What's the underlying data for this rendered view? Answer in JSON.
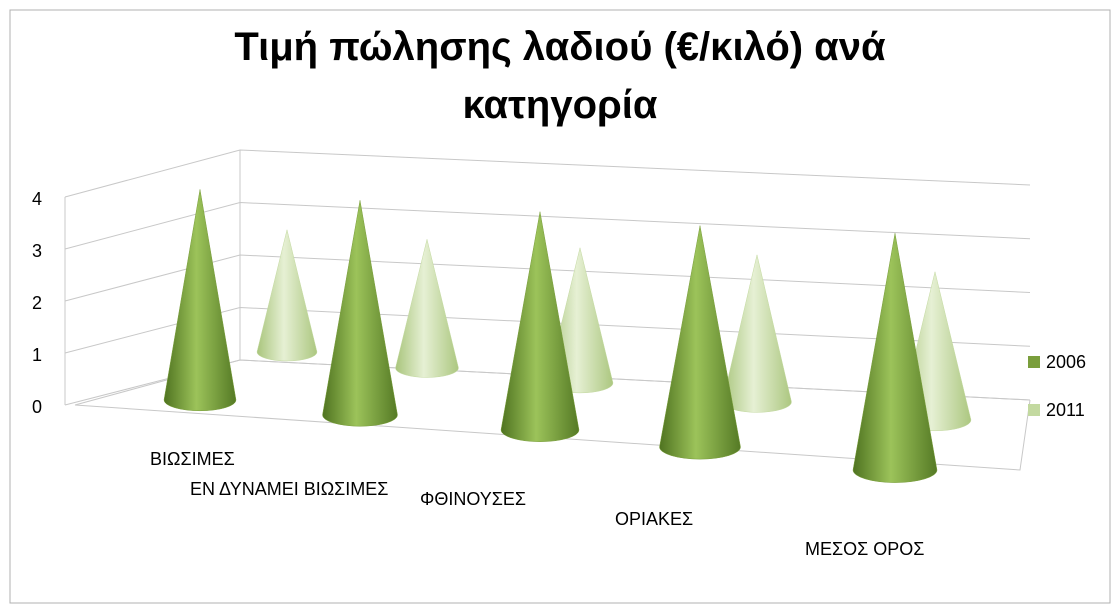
{
  "chart_data": {
    "type": "cone3d",
    "title": "Τιμή πώλησης λαδιού (€/κιλό) ανά κατηγορία",
    "categories": [
      "ΒΙΩΣΙΜΕΣ",
      "ΕΝ ΔΥΝΑΜΕΙ ΒΙΩΣΙΜΕΣ",
      "ΦΘΙΝΟΥΣΕΣ",
      "ΟΡΙΑΚΕΣ",
      "ΜΕΣΟΣ ΟΡΟΣ"
    ],
    "series": [
      {
        "name": "2006",
        "color": "#7a9e3c",
        "values": [
          3.9,
          3.8,
          3.7,
          3.6,
          3.7
        ]
      },
      {
        "name": "2011",
        "color": "#c3d9a0",
        "values": [
          2.6,
          2.6,
          2.6,
          2.7,
          2.6
        ]
      }
    ],
    "ylim": [
      0,
      4
    ],
    "yticks": [
      0,
      1,
      2,
      3,
      4
    ],
    "grid": true,
    "legend": "right"
  }
}
